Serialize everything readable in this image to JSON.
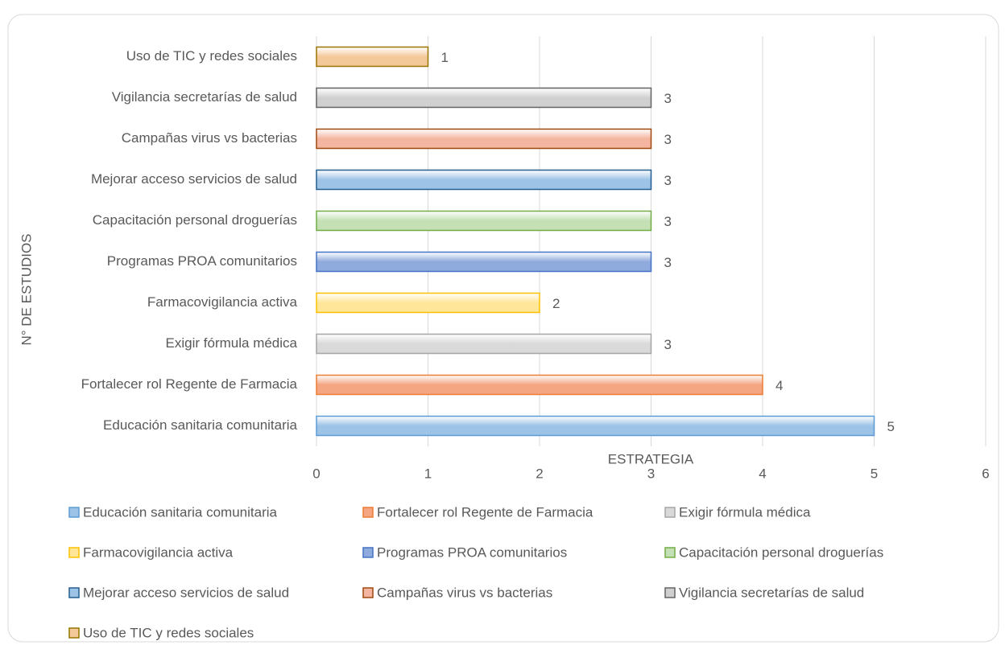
{
  "chart_data": {
    "type": "barh",
    "xlabel": "ESTRATEGIA",
    "ylabel": "N° DE ESTUDIOS",
    "categories": [
      "Educación sanitaria comunitaria",
      "Fortalecer rol Regente de Farmacia",
      "Exigir fórmula médica",
      "Farmacovigilancia activa",
      "Programas PROA comunitarios",
      "Capacitación personal droguerías",
      "Mejorar acceso servicios de salud",
      "Campañas virus vs bacterias",
      "Vigilancia secretarías de salud",
      "Uso de TIC y redes sociales"
    ],
    "values": [
      5,
      4,
      3,
      2,
      3,
      3,
      3,
      3,
      3,
      1
    ],
    "colors": [
      "#9dc3e6",
      "#f4a582",
      "#d9d9d9",
      "#ffe699",
      "#8faadc",
      "#c5e0b4",
      "#9dc3e6",
      "#f4b6a0",
      "#d0d0d0",
      "#f4c99a"
    ],
    "edge_colors": [
      "#5b9bd5",
      "#ed7d31",
      "#a5a5a5",
      "#ffc000",
      "#4472c4",
      "#70ad47",
      "#255e91",
      "#9e480e",
      "#636363",
      "#997300"
    ],
    "xlim": [
      0,
      6
    ],
    "xticks": [
      0,
      1,
      2,
      3,
      4,
      5,
      6
    ],
    "grid": true,
    "legend": "bottom"
  }
}
